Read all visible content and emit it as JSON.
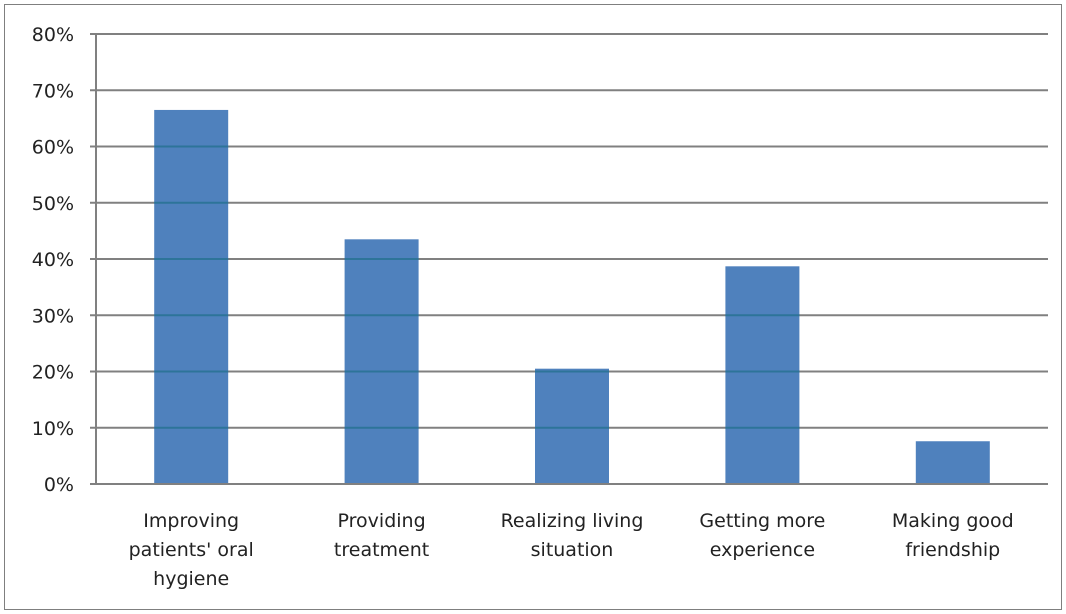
{
  "chart_data": {
    "type": "bar",
    "title": "",
    "xlabel": "",
    "ylabel": "",
    "categories": [
      [
        "Improving",
        "patients' oral",
        "hygiene"
      ],
      [
        "Providing",
        "treatment"
      ],
      [
        "Realizing living",
        "situation"
      ],
      [
        "Getting more",
        "experience"
      ],
      [
        "Making good",
        "friendship"
      ]
    ],
    "values": [
      66.5,
      43.5,
      20.5,
      38.7,
      7.6
    ],
    "ylim": [
      0,
      80
    ],
    "yticks": [
      "0%",
      "10%",
      "20%",
      "30%",
      "40%",
      "50%",
      "60%",
      "70%",
      "80%"
    ],
    "grid": true,
    "legend": "none",
    "bar_color": "#4f81bd",
    "grid_color": "#808080"
  }
}
